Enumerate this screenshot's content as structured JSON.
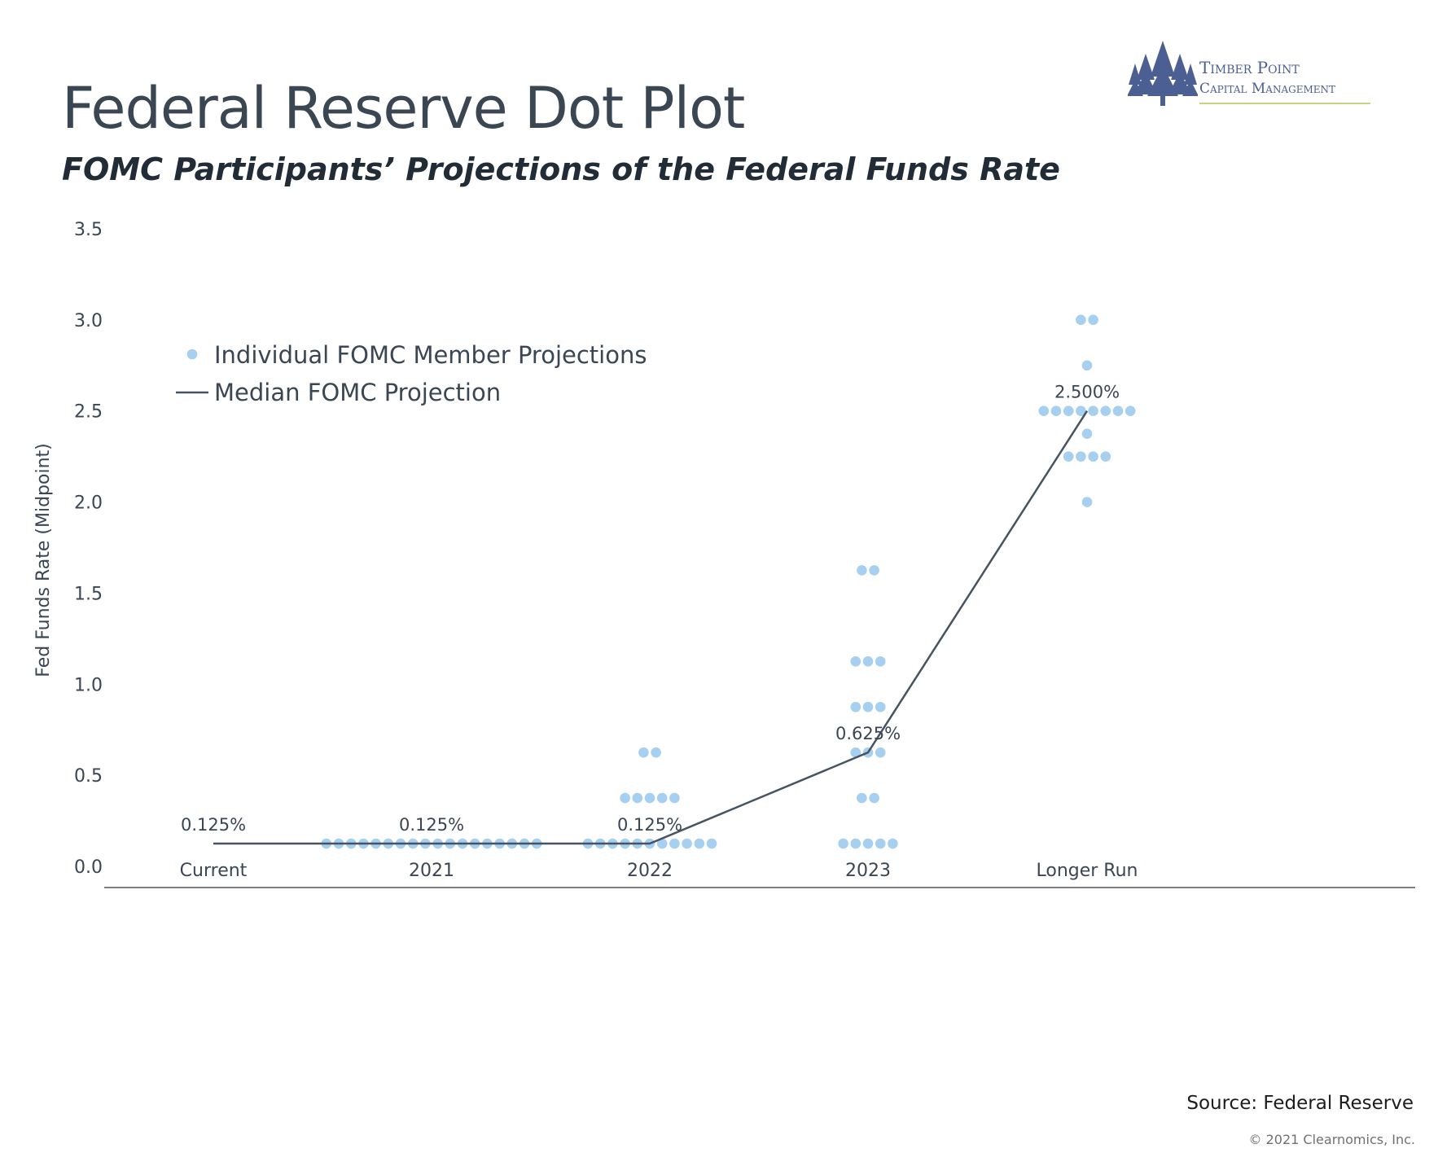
{
  "header": {
    "title": "Federal Reserve Dot Plot",
    "subtitle": "FOMC Participants’ Projections of the Federal Funds Rate"
  },
  "logo": {
    "line1": "Timber Point",
    "line2": "Capital Management",
    "color": "#4c5f93"
  },
  "footer": {
    "source": "Source: Federal Reserve",
    "copyright": "© 2021 Clearnomics, Inc."
  },
  "chart_data": {
    "type": "scatter",
    "ylabel": "Fed Funds Rate (Midpoint)",
    "ylim": [
      0,
      3.5
    ],
    "yticks": [
      "0.0",
      "0.5",
      "1.0",
      "1.5",
      "2.0",
      "2.5",
      "3.0",
      "3.5"
    ],
    "categories": [
      "Current",
      "2021",
      "2022",
      "2023",
      "Longer Run"
    ],
    "grid": false,
    "legend_position": "top-left",
    "colors": {
      "dots": "#a6cff0",
      "median": "#465462"
    },
    "series": [
      {
        "name": "Individual FOMC Member Projections",
        "kind": "dots",
        "points": [
          {
            "category": "2021",
            "y": 0.125,
            "count": 18
          },
          {
            "category": "2022",
            "y": 0.125,
            "count": 11
          },
          {
            "category": "2022",
            "y": 0.375,
            "count": 5
          },
          {
            "category": "2022",
            "y": 0.625,
            "count": 2
          },
          {
            "category": "2023",
            "y": 0.125,
            "count": 5
          },
          {
            "category": "2023",
            "y": 0.375,
            "count": 2
          },
          {
            "category": "2023",
            "y": 0.625,
            "count": 3
          },
          {
            "category": "2023",
            "y": 0.875,
            "count": 3
          },
          {
            "category": "2023",
            "y": 1.125,
            "count": 3
          },
          {
            "category": "2023",
            "y": 1.625,
            "count": 2
          },
          {
            "category": "Longer Run",
            "y": 2.0,
            "count": 1
          },
          {
            "category": "Longer Run",
            "y": 2.25,
            "count": 4
          },
          {
            "category": "Longer Run",
            "y": 2.375,
            "count": 1
          },
          {
            "category": "Longer Run",
            "y": 2.5,
            "count": 8
          },
          {
            "category": "Longer Run",
            "y": 2.75,
            "count": 1
          },
          {
            "category": "Longer Run",
            "y": 3.0,
            "count": 2
          }
        ]
      },
      {
        "name": "Median FOMC Projection",
        "kind": "line",
        "values": [
          0.125,
          0.125,
          0.125,
          0.625,
          2.5
        ],
        "labels": [
          "0.125%",
          "0.125%",
          "0.125%",
          "0.625%",
          "2.500%"
        ]
      }
    ]
  }
}
